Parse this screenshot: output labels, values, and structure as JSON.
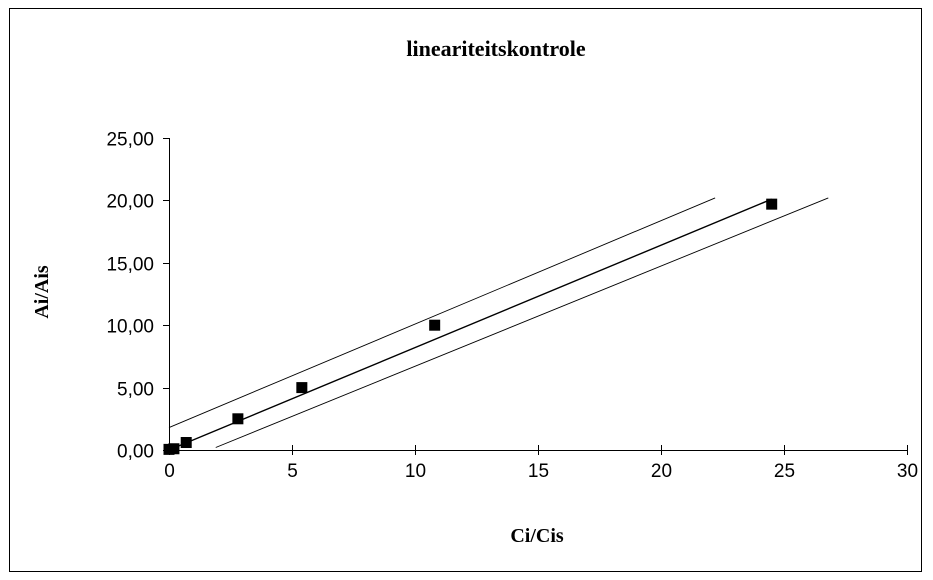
{
  "chart_data": {
    "type": "scatter",
    "title": "lineariteitskontrole",
    "xlabel": "Ci/Cis",
    "ylabel": "Ai/Ais",
    "xlim": [
      0,
      30
    ],
    "ylim": [
      0,
      25
    ],
    "x_ticks": [
      0,
      5,
      10,
      15,
      20,
      25,
      30
    ],
    "x_tick_labels": [
      "0",
      "5",
      "10",
      "15",
      "20",
      "25",
      "30"
    ],
    "y_ticks": [
      0,
      5,
      10,
      15,
      20,
      25
    ],
    "y_tick_labels": [
      "0,00",
      "5,00",
      "10,00",
      "15,00",
      "20,00",
      "25,00"
    ],
    "grid": false,
    "series": [
      {
        "type": "scatter",
        "marker": "square",
        "color": "#000000",
        "x": [
          0.0,
          0.2,
          0.7,
          2.8,
          5.4,
          10.8,
          24.5
        ],
        "y": [
          0.05,
          0.1,
          0.6,
          2.5,
          5.0,
          10.0,
          19.7
        ]
      },
      {
        "type": "line",
        "style": "solid",
        "color": "#000000",
        "x": [
          0.0,
          24.5
        ],
        "y": [
          0.0,
          20.1
        ]
      },
      {
        "type": "line",
        "style": "thin",
        "color": "#000000",
        "x": [
          0.0,
          22.2
        ],
        "y": [
          1.8,
          20.2
        ]
      },
      {
        "type": "line",
        "style": "thin",
        "color": "#000000",
        "x": [
          1.9,
          26.8
        ],
        "y": [
          0.2,
          20.2
        ]
      }
    ]
  }
}
